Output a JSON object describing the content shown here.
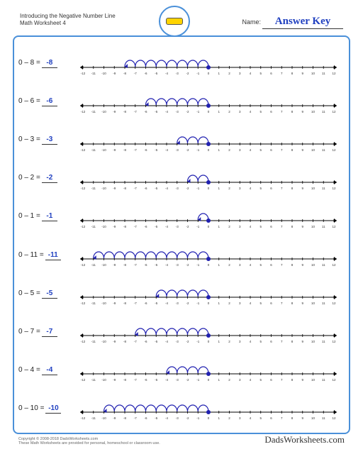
{
  "title_line1": "Introducing the Negative Number Line",
  "title_line2": "Math Worksheet 4",
  "name_label": "Name:",
  "answer_key": "Answer Key",
  "copyright": "Copyright © 2008-2018 DadsWorksheets.com",
  "disclaimer": "These Math Worksheets are provided for personal, homeschool or classroom use.",
  "brand": "DadsWorksheets.com",
  "numberline": {
    "min": -12,
    "max": 12,
    "label_fontsize": 4.5,
    "start_dot_color": "#2020b0",
    "hop_color": "#2020b0",
    "axis_color": "#000",
    "tick_height": 4,
    "arrow_size": 3
  },
  "problems": [
    {
      "lhs": "0 – 8 =",
      "ans": "-8",
      "start": 0,
      "hops": 8
    },
    {
      "lhs": "0 – 6 =",
      "ans": "-6",
      "start": 0,
      "hops": 6
    },
    {
      "lhs": "0 – 3 =",
      "ans": "-3",
      "start": 0,
      "hops": 3
    },
    {
      "lhs": "0 – 2 =",
      "ans": "-2",
      "start": 0,
      "hops": 2
    },
    {
      "lhs": "0 – 1 =",
      "ans": "-1",
      "start": 0,
      "hops": 1
    },
    {
      "lhs": "0 – 11 =",
      "ans": "-11",
      "start": 0,
      "hops": 11
    },
    {
      "lhs": "0 – 5 =",
      "ans": "-5",
      "start": 0,
      "hops": 5
    },
    {
      "lhs": "0 – 7 =",
      "ans": "-7",
      "start": 0,
      "hops": 7
    },
    {
      "lhs": "0 – 4 =",
      "ans": "-4",
      "start": 0,
      "hops": 4
    },
    {
      "lhs": "0 – 10 =",
      "ans": "-10",
      "start": 0,
      "hops": 10
    }
  ],
  "colors": {
    "border": "#4a90d9",
    "answer": "#2040c0",
    "text": "#222"
  }
}
